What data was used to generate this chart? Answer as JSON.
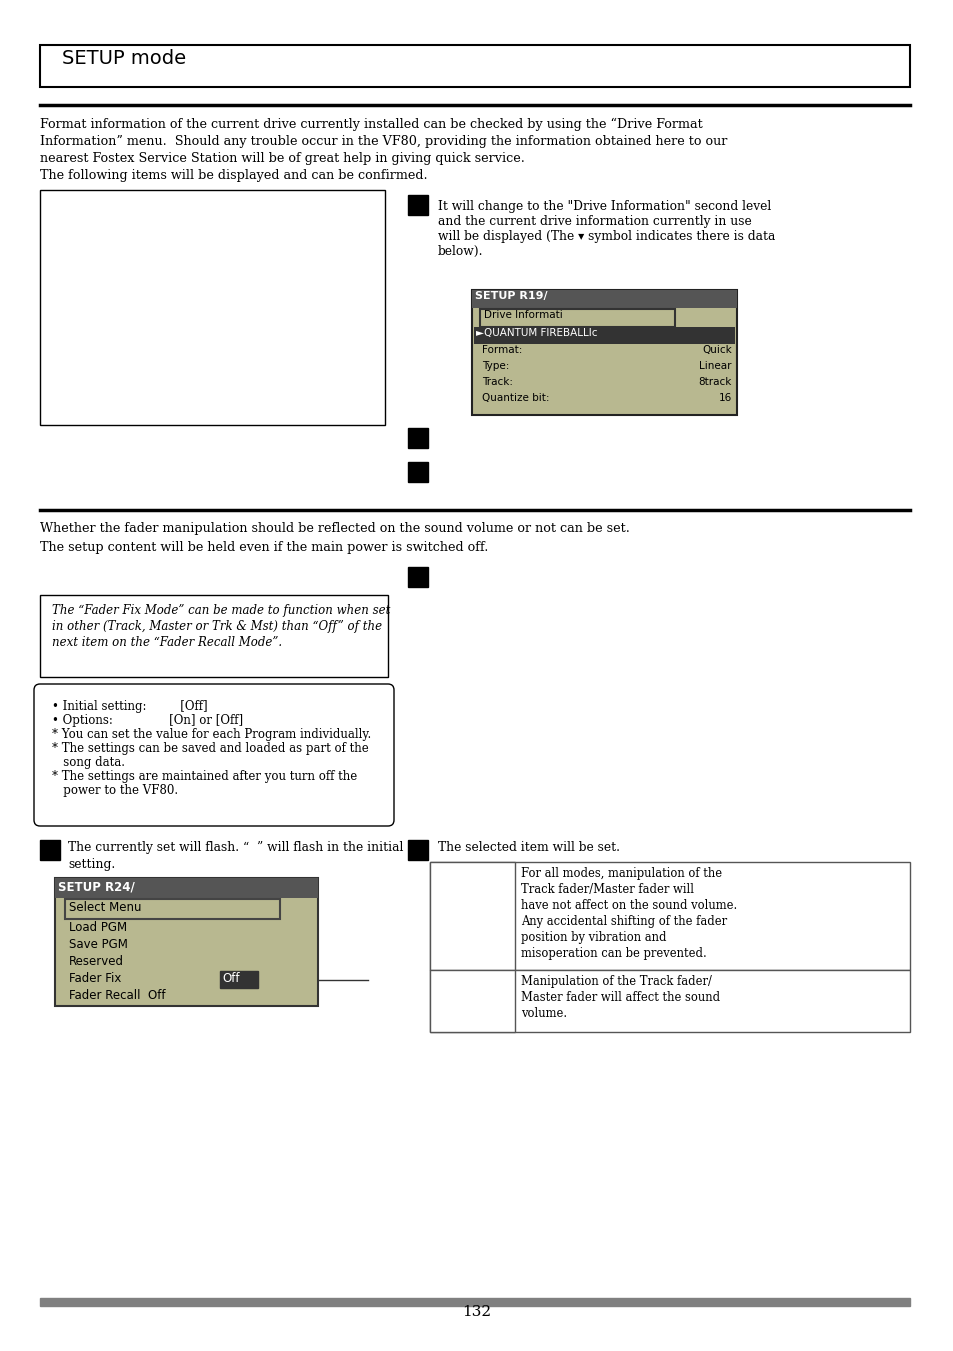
{
  "bg_color": "#ffffff",
  "title_box_text": "SETUP mode",
  "section1_lines": [
    "Format information of the current drive currently installed can be checked by using the “Drive Format",
    "Information” menu.  Should any trouble occur in the VF80, providing the information obtained here to our",
    "nearest Fostex Service Station will be of great help in giving quick service.",
    "The following items will be displayed and can be confirmed."
  ],
  "step1_desc_lines": [
    "It will change to the \"Drive Information\" second level",
    "and the current drive information currently in use",
    "will be displayed (The ▾ symbol indicates there is data",
    "below)."
  ],
  "section2_lines": [
    "Whether the fader manipulation should be reflected on the sound volume or not can be set.",
    "The setup content will be held even if the main power is switched off."
  ],
  "note_italic_lines": [
    "The “Fader Fix Mode” can be made to function when set",
    "in other (Track, Master or Trk & Mst) than “Off” of the",
    "next item on the “Fader Recall Mode”."
  ],
  "settings_lines": [
    "• Initial setting:         [Off]",
    "• Options:               [On] or [Off]",
    "* You can set the value for each Program individually.",
    "* The settings can be saved and loaded as part of the",
    "   song data.",
    "* The settings are maintained after you turn off the",
    "   power to the VF80."
  ],
  "step4_text_line1": "The currently set will flash. “  ” will flash in the initial",
  "step4_text_line2": "setting.",
  "step5_text": "The selected item will be set.",
  "table_row1": "For all modes, manipulation of the\nTrack fader/Master fader will\nhave not affect on the sound volume.\nAny accidental shifting of the fader\nposition by vibration and\nmisoperation can be prevented.",
  "table_row2": "Manipulation of the Track fader/\nMaster fader will affect the sound\nvolume.",
  "page_number": "132",
  "footer_bar_color": "#808080"
}
